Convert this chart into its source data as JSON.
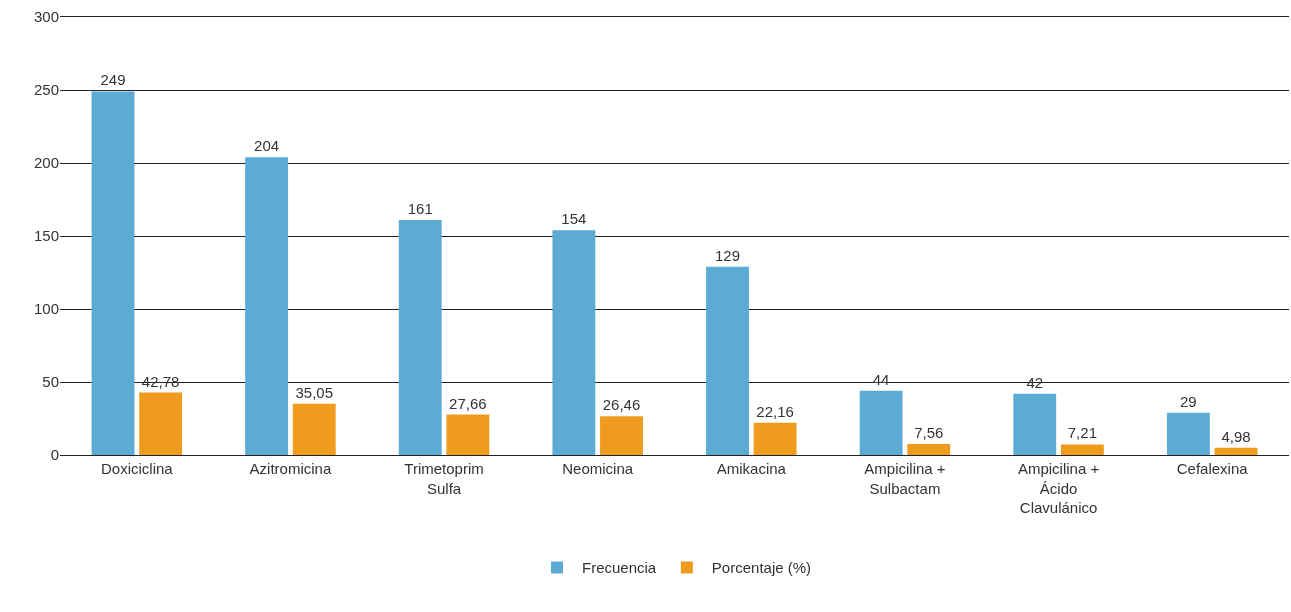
{
  "chart_data": {
    "type": "bar",
    "categories": [
      "Doxiciclina",
      "Azitromicina",
      "Trimetoprim Sulfa",
      "Neomicina",
      "Amikacina",
      "Ampicilina + Sulbactam",
      "Ampicilina + Ácido Clavulánico",
      "Cefalexina"
    ],
    "series": [
      {
        "name": "Frecuencia",
        "color": "#5babd4",
        "values": [
          249,
          204,
          161,
          154,
          129,
          44,
          42,
          29
        ]
      },
      {
        "name": "Porcentaje (%)",
        "color": "#ee9b1e",
        "values": [
          42.78,
          35.05,
          27.66,
          26.46,
          22.16,
          7.56,
          7.21,
          4.98
        ],
        "value_labels": [
          "42,78",
          "35,05",
          "27,66",
          "26,46",
          "22,16",
          "7,56",
          "7,21",
          "4,98"
        ]
      }
    ],
    "ylim": [
      0,
      300
    ],
    "yticks": [
      0,
      50,
      100,
      150,
      200,
      250,
      300
    ],
    "grid": "y",
    "legend": "bottom",
    "data_labels": true
  }
}
